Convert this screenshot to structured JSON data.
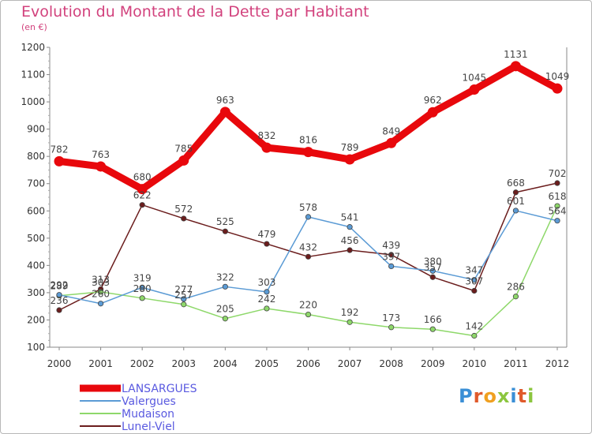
{
  "title": "Evolution du Montant de la Dette par Habitant",
  "subtitle": "(en €)",
  "logo": {
    "text": "Proxiti",
    "colors": [
      "#3a8fd6",
      "#e05a2b",
      "#f0a020",
      "#8cc63f",
      "#3a8fd6",
      "#e05a2b",
      "#8cc63f"
    ]
  },
  "chart_data": {
    "type": "line",
    "x": [
      "2000",
      "2001",
      "2002",
      "2003",
      "2004",
      "2005",
      "2006",
      "2007",
      "2008",
      "2009",
      "2010",
      "2011",
      "2012"
    ],
    "ylim": [
      100,
      1200
    ],
    "yticks": [
      100,
      200,
      300,
      400,
      500,
      600,
      700,
      800,
      900,
      1000,
      1100,
      1200
    ],
    "grid": false,
    "legend_position": "bottom-left",
    "series": [
      {
        "name": "LANSARGUES",
        "color": "#e8080c",
        "values": [
          782,
          763,
          680,
          785,
          963,
          832,
          816,
          789,
          849,
          962,
          1045,
          1131,
          1049
        ]
      },
      {
        "name": "Valergues",
        "color": "#5b9bd5",
        "values": [
          292,
          260,
          319,
          277,
          322,
          303,
          578,
          541,
          397,
          380,
          347,
          601,
          564
        ]
      },
      {
        "name": "Mudaison",
        "color": "#8ed86a",
        "values": [
          289,
          303,
          280,
          257,
          205,
          242,
          220,
          192,
          173,
          166,
          142,
          286,
          618
        ]
      },
      {
        "name": "Lunel-Viel",
        "color": "#6b1d1d",
        "values": [
          236,
          313,
          622,
          572,
          525,
          479,
          432,
          456,
          439,
          357,
          307,
          668,
          702
        ]
      }
    ]
  }
}
